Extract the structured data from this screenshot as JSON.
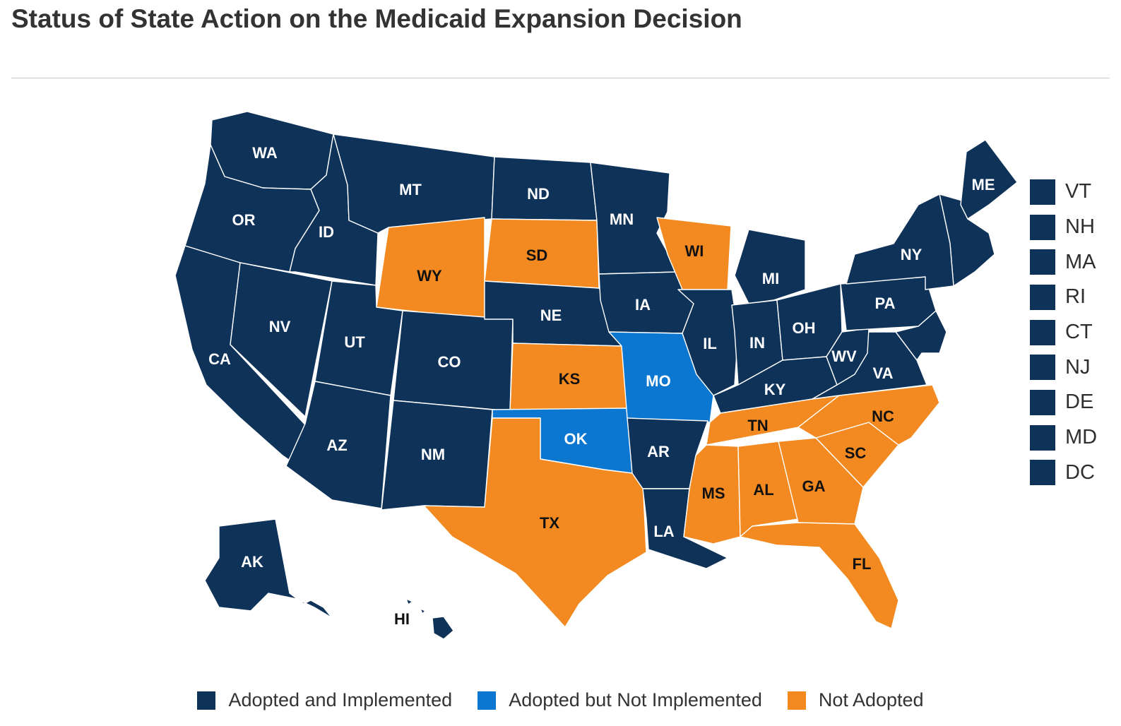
{
  "title": "Status of State Action on the Medicaid Expansion Decision",
  "colors": {
    "adopted_implemented": "#0f3259",
    "adopted_not_implemented": "#0b77d0",
    "not_adopted": "#f28a21",
    "label_on_dark": "#ffffff",
    "label_on_light": "#111111",
    "border": "#ffffff"
  },
  "legend": [
    {
      "label": "Adopted and Implemented",
      "status": "adopted_implemented"
    },
    {
      "label": "Adopted but Not Implemented",
      "status": "adopted_not_implemented"
    },
    {
      "label": "Not Adopted",
      "status": "not_adopted"
    }
  ],
  "states": [
    {
      "code": "WA",
      "status": "adopted_implemented"
    },
    {
      "code": "OR",
      "status": "adopted_implemented"
    },
    {
      "code": "CA",
      "status": "adopted_implemented"
    },
    {
      "code": "ID",
      "status": "adopted_implemented"
    },
    {
      "code": "NV",
      "status": "adopted_implemented"
    },
    {
      "code": "MT",
      "status": "adopted_implemented"
    },
    {
      "code": "WY",
      "status": "not_adopted"
    },
    {
      "code": "UT",
      "status": "adopted_implemented"
    },
    {
      "code": "AZ",
      "status": "adopted_implemented"
    },
    {
      "code": "CO",
      "status": "adopted_implemented"
    },
    {
      "code": "NM",
      "status": "adopted_implemented"
    },
    {
      "code": "ND",
      "status": "adopted_implemented"
    },
    {
      "code": "SD",
      "status": "not_adopted"
    },
    {
      "code": "NE",
      "status": "adopted_implemented"
    },
    {
      "code": "KS",
      "status": "not_adopted"
    },
    {
      "code": "OK",
      "status": "adopted_not_implemented"
    },
    {
      "code": "TX",
      "status": "not_adopted"
    },
    {
      "code": "MN",
      "status": "adopted_implemented"
    },
    {
      "code": "IA",
      "status": "adopted_implemented"
    },
    {
      "code": "MO",
      "status": "adopted_not_implemented"
    },
    {
      "code": "AR",
      "status": "adopted_implemented"
    },
    {
      "code": "LA",
      "status": "adopted_implemented"
    },
    {
      "code": "WI",
      "status": "not_adopted"
    },
    {
      "code": "IL",
      "status": "adopted_implemented"
    },
    {
      "code": "MI",
      "status": "adopted_implemented"
    },
    {
      "code": "IN",
      "status": "adopted_implemented"
    },
    {
      "code": "OH",
      "status": "adopted_implemented"
    },
    {
      "code": "KY",
      "status": "adopted_implemented"
    },
    {
      "code": "TN",
      "status": "not_adopted"
    },
    {
      "code": "MS",
      "status": "not_adopted"
    },
    {
      "code": "AL",
      "status": "not_adopted"
    },
    {
      "code": "GA",
      "status": "not_adopted"
    },
    {
      "code": "FL",
      "status": "not_adopted"
    },
    {
      "code": "SC",
      "status": "not_adopted"
    },
    {
      "code": "NC",
      "status": "not_adopted"
    },
    {
      "code": "VA",
      "status": "adopted_implemented"
    },
    {
      "code": "WV",
      "status": "adopted_implemented"
    },
    {
      "code": "PA",
      "status": "adopted_implemented"
    },
    {
      "code": "NY",
      "status": "adopted_implemented"
    },
    {
      "code": "ME",
      "status": "adopted_implemented"
    },
    {
      "code": "AK",
      "status": "adopted_implemented"
    },
    {
      "code": "HI",
      "status": "adopted_implemented"
    }
  ],
  "side_states": [
    {
      "code": "VT",
      "status": "adopted_implemented"
    },
    {
      "code": "NH",
      "status": "adopted_implemented"
    },
    {
      "code": "MA",
      "status": "adopted_implemented"
    },
    {
      "code": "RI",
      "status": "adopted_implemented"
    },
    {
      "code": "CT",
      "status": "adopted_implemented"
    },
    {
      "code": "NJ",
      "status": "adopted_implemented"
    },
    {
      "code": "DE",
      "status": "adopted_implemented"
    },
    {
      "code": "MD",
      "status": "adopted_implemented"
    },
    {
      "code": "DC",
      "status": "adopted_implemented"
    }
  ]
}
